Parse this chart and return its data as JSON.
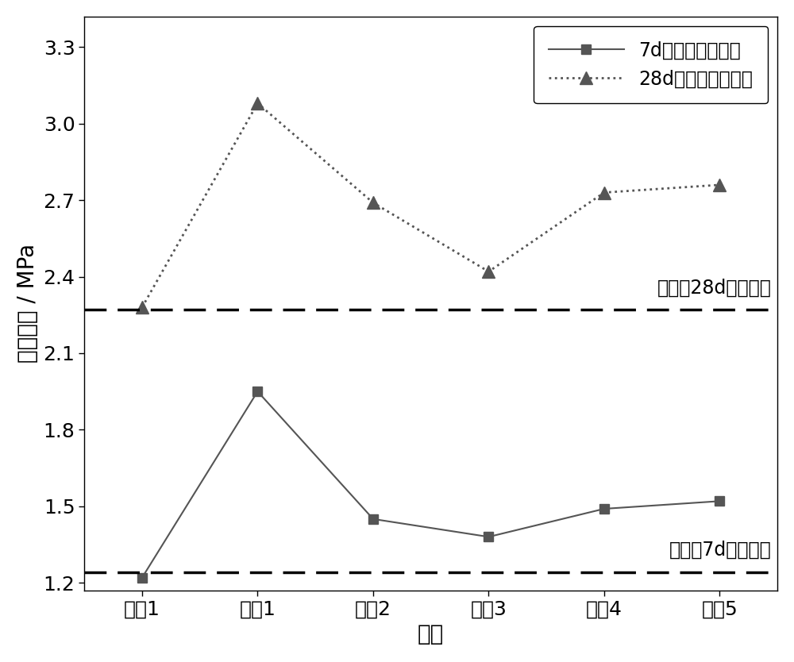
{
  "categories": [
    "对比1",
    "案例1",
    "案例2",
    "案例3",
    "案例4",
    "案例5"
  ],
  "series_7d": [
    1.22,
    1.95,
    1.45,
    1.38,
    1.49,
    1.52
  ],
  "series_28d": [
    2.28,
    3.08,
    2.69,
    2.42,
    2.73,
    2.76
  ],
  "hline_7d": 1.24,
  "hline_28d": 2.27,
  "label_7d": "7d无侧限抗压强度",
  "label_28d": "28d无侧限抗压强度",
  "hline_label_7d": "纯水波7d抗压强度",
  "hline_label_28d": "纯水波28d抗压强度",
  "xlabel": "组别",
  "ylabel": "抗压强度 / MPa",
  "ylim_min": 1.17,
  "ylim_max": 3.42,
  "yticks": [
    1.2,
    1.5,
    1.8,
    2.1,
    2.4,
    2.7,
    3.0,
    3.3
  ],
  "line_color": "#555555",
  "bg_color": "#ffffff",
  "fontsize_tick": 18,
  "fontsize_label": 20,
  "fontsize_legend": 17,
  "fontsize_annot": 17
}
